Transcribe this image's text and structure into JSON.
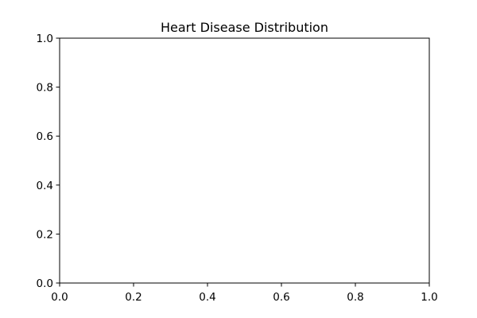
{
  "chart_data": {
    "type": "pie",
    "title": "Heart Disease Distribution",
    "xlabel": "",
    "ylabel": "",
    "xlim": [
      0,
      1
    ],
    "ylim": [
      0,
      1
    ],
    "x_ticks": [
      "0.0",
      "0.2",
      "0.4",
      "0.6",
      "0.8",
      "1.0"
    ],
    "y_ticks": [
      "0.0",
      "0.2",
      "0.4",
      "0.6",
      "0.8",
      "1.0"
    ],
    "categories": [],
    "values": [],
    "grid": false,
    "legend": "none",
    "colors": {
      "axis": "#000000",
      "background": "#ffffff"
    }
  }
}
